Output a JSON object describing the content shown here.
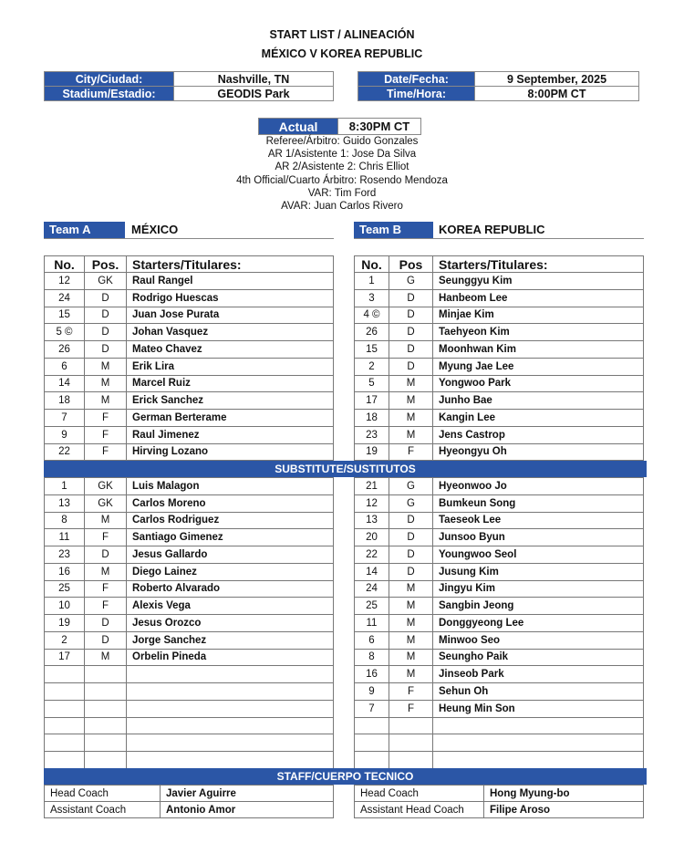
{
  "header": {
    "title": "START LIST / ALINEACIÓN",
    "match": "MÉXICO V KOREA REPUBLIC"
  },
  "info": {
    "city_label": "City/Ciudad:",
    "city": "Nashville, TN",
    "stadium_label": "Stadium/Estadio:",
    "stadium": "GEODIS Park",
    "date_label": "Date/Fecha:",
    "date": "9 September, 2025",
    "time_label": "Time/Hora:",
    "time": "8:00PM CT",
    "actual_label": "Actual",
    "actual": "8:30PM CT"
  },
  "officials": [
    "Referee/Árbitro: Guido Gonzales",
    "AR 1/Asistente 1: Jose Da Silva",
    "AR 2/Asistente 2: Chris Elliot",
    "4th Official/Cuarto Árbitro: Rosendo Mendoza",
    "VAR: Tim Ford",
    "AVAR: Juan Carlos Rivero"
  ],
  "team_a": {
    "label": "Team A",
    "name": "MÉXICO",
    "headers": {
      "no": "No.",
      "pos": "Pos.",
      "starters": "Starters/Titulares:"
    },
    "starters": [
      {
        "no": "12",
        "pos": "GK",
        "name": "Raul Rangel"
      },
      {
        "no": "24",
        "pos": "D",
        "name": "Rodrigo Huescas"
      },
      {
        "no": "15",
        "pos": "D",
        "name": "Juan Jose Purata"
      },
      {
        "no": "5 ©",
        "pos": "D",
        "name": "Johan Vasquez"
      },
      {
        "no": "26",
        "pos": "D",
        "name": "Mateo Chavez"
      },
      {
        "no": "6",
        "pos": "M",
        "name": "Erik Lira"
      },
      {
        "no": "14",
        "pos": "M",
        "name": "Marcel Ruiz"
      },
      {
        "no": "18",
        "pos": "M",
        "name": "Erick Sanchez"
      },
      {
        "no": "7",
        "pos": "F",
        "name": "German Berterame"
      },
      {
        "no": "9",
        "pos": "F",
        "name": "Raul Jimenez"
      },
      {
        "no": "22",
        "pos": "F",
        "name": "Hirving Lozano"
      }
    ],
    "substitutes": [
      {
        "no": "1",
        "pos": "GK",
        "name": "Luis Malagon"
      },
      {
        "no": "13",
        "pos": "GK",
        "name": "Carlos Moreno"
      },
      {
        "no": "8",
        "pos": "M",
        "name": "Carlos Rodriguez"
      },
      {
        "no": "11",
        "pos": "F",
        "name": "Santiago Gimenez"
      },
      {
        "no": "23",
        "pos": "D",
        "name": "Jesus Gallardo"
      },
      {
        "no": "16",
        "pos": "M",
        "name": "Diego Lainez"
      },
      {
        "no": "25",
        "pos": "F",
        "name": "Roberto Alvarado"
      },
      {
        "no": "10",
        "pos": "F",
        "name": "Alexis Vega"
      },
      {
        "no": "19",
        "pos": "D",
        "name": "Jesus Orozco"
      },
      {
        "no": "2",
        "pos": "D",
        "name": "Jorge Sanchez"
      },
      {
        "no": "17",
        "pos": "M",
        "name": "Orbelin Pineda"
      }
    ],
    "staff": [
      {
        "role": "Head Coach",
        "name": "Javier Aguirre"
      },
      {
        "role": "Assistant Coach",
        "name": "Antonio Amor"
      }
    ]
  },
  "team_b": {
    "label": "Team B",
    "name": "KOREA REPUBLIC",
    "headers": {
      "no": "No.",
      "pos": "Pos",
      "starters": "Starters/Titulares:"
    },
    "starters": [
      {
        "no": "1",
        "pos": "G",
        "name": "Seunggyu Kim"
      },
      {
        "no": "3",
        "pos": "D",
        "name": "Hanbeom Lee"
      },
      {
        "no": "4 ©",
        "pos": "D",
        "name": "Minjae Kim"
      },
      {
        "no": "26",
        "pos": "D",
        "name": "Taehyeon Kim"
      },
      {
        "no": "15",
        "pos": "D",
        "name": "Moonhwan Kim"
      },
      {
        "no": "2",
        "pos": "D",
        "name": "Myung Jae Lee"
      },
      {
        "no": "5",
        "pos": "M",
        "name": "Yongwoo Park"
      },
      {
        "no": "17",
        "pos": "M",
        "name": "Junho Bae"
      },
      {
        "no": "18",
        "pos": "M",
        "name": "Kangin Lee"
      },
      {
        "no": "23",
        "pos": "M",
        "name": "Jens Castrop"
      },
      {
        "no": "19",
        "pos": "F",
        "name": "Hyeongyu Oh"
      }
    ],
    "substitutes": [
      {
        "no": "21",
        "pos": "G",
        "name": "Hyeonwoo Jo"
      },
      {
        "no": "12",
        "pos": "G",
        "name": "Bumkeun Song"
      },
      {
        "no": "13",
        "pos": "D",
        "name": "Taeseok Lee"
      },
      {
        "no": "20",
        "pos": "D",
        "name": "Junsoo Byun"
      },
      {
        "no": "22",
        "pos": "D",
        "name": "Youngwoo Seol"
      },
      {
        "no": "14",
        "pos": "D",
        "name": "Jusung Kim"
      },
      {
        "no": "24",
        "pos": "M",
        "name": "Jingyu Kim"
      },
      {
        "no": "25",
        "pos": "M",
        "name": "Sangbin Jeong"
      },
      {
        "no": "11",
        "pos": "M",
        "name": "Donggyeong Lee"
      },
      {
        "no": "6",
        "pos": "M",
        "name": "Minwoo Seo"
      },
      {
        "no": "8",
        "pos": "M",
        "name": "Seungho Paik"
      },
      {
        "no": "16",
        "pos": "M",
        "name": "Jinseob Park"
      },
      {
        "no": "9",
        "pos": "F",
        "name": "Sehun Oh"
      },
      {
        "no": "7",
        "pos": "F",
        "name": "Heung Min Son"
      }
    ],
    "staff": [
      {
        "role": "Head Coach",
        "name": "Hong Myung-bo"
      },
      {
        "role": "Assistant Head Coach",
        "name": "Filipe Aroso"
      }
    ]
  },
  "sections": {
    "substitutes": "SUBSTITUTE/SUSTITUTOS",
    "staff": "STAFF/CUERPO TECNICO"
  },
  "colors": {
    "accent": "#2b56a6"
  }
}
